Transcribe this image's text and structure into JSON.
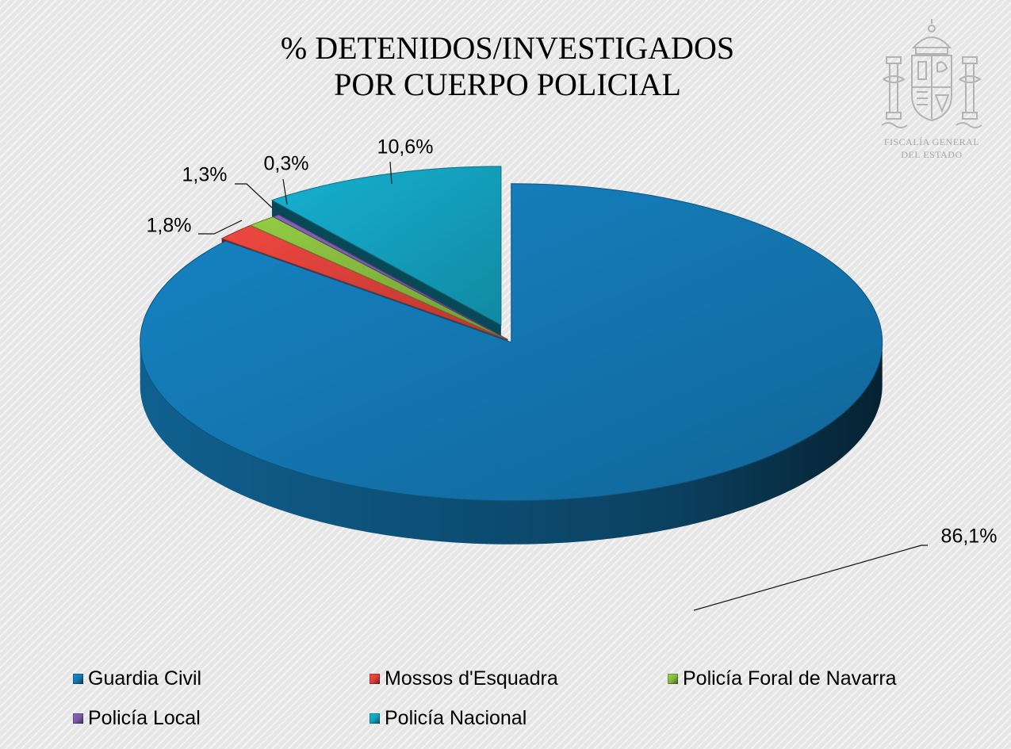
{
  "title": {
    "line1": "% DETENIDOS/INVESTIGADOS",
    "line2": "POR CUERPO POLICIAL"
  },
  "watermark": {
    "line1": "FISCALÍA GENERAL",
    "line2": "DEL ESTADO",
    "icon": "coat-of-arms-icon"
  },
  "chart_data": {
    "type": "pie",
    "style": "3d-exploded",
    "title": "% DETENIDOS/INVESTIGADOS POR CUERPO POLICIAL",
    "categories": [
      "Guardia Civil",
      "Mossos d'Esquadra",
      "Policía Foral de Navarra",
      "Policía Local",
      "Policía Nacional"
    ],
    "values": [
      86.1,
      1.8,
      1.3,
      0.3,
      10.6
    ],
    "data_labels": [
      "86,1%",
      "1,8%",
      "1,3%",
      "0,3%",
      "10,6%"
    ],
    "colors": [
      "#1478b3",
      "#d9413a",
      "#86b93e",
      "#7a5aa6",
      "#14a1be"
    ],
    "exploded": [
      "Policía Nacional"
    ],
    "legend_position": "bottom"
  },
  "legend": [
    {
      "label": "Guardia Civil",
      "color": "#1478b3"
    },
    {
      "label": "Mossos d'Esquadra",
      "color": "#d9413a"
    },
    {
      "label": "Policía Foral de Navarra",
      "color": "#86b93e"
    },
    {
      "label": "Policía Local",
      "color": "#7a5aa6"
    },
    {
      "label": "Policía Nacional",
      "color": "#14a1be"
    }
  ]
}
